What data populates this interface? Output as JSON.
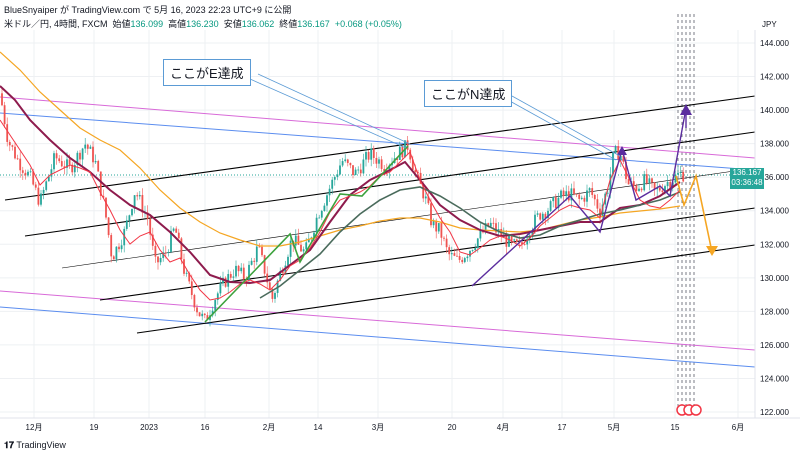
{
  "header": {
    "attribution": "BlueSnyaiper が TradingView.com で 5月 16, 2023 22:23 UTC+9 に公開",
    "symbol": "米ドル／円, 4時間, FXCM",
    "open_label": "始値",
    "open_value": "136.099",
    "high_label": "高値",
    "high_value": "136.230",
    "low_label": "安値",
    "low_value": "136.062",
    "close_label": "終値",
    "close_value": "136.167",
    "change": "+0.068 (+0.05%)"
  },
  "currency_label": "JPY",
  "price_tag": {
    "price": "136.167",
    "countdown": "03:36:48"
  },
  "annotations": {
    "e_label": "ここがE達成",
    "n_label": "ここがN達成"
  },
  "footer": {
    "brand": "TradingView"
  },
  "colors": {
    "candle_up": "#26a69a",
    "candle_down": "#ef5350",
    "ma_short": "#f23645",
    "ma_mid": "#8e1b4d",
    "ma_long": "#f5a623",
    "ma_slow": "#4a6b5c",
    "channel": "#000000",
    "pink_line": "#d86ad8",
    "blue_line": "#5b8def",
    "green_waves": "#3da23d",
    "purple_waves": "#5b2d9e",
    "orange_projection": "#f5a623"
  },
  "chart_data": {
    "type": "candlestick",
    "instrument": "USD/JPY 4H",
    "y_ticks": [
      "144.000",
      "142.000",
      "140.000",
      "138.000",
      "136.000",
      "134.000",
      "132.000",
      "130.000",
      "128.000",
      "126.000",
      "124.000",
      "122.000"
    ],
    "x_ticks": [
      "12月",
      "19",
      "2023",
      "16",
      "2月",
      "14",
      "3月",
      "20",
      "4月",
      "17",
      "5月",
      "15",
      "6月"
    ],
    "ylim": [
      121.5,
      145.5
    ],
    "last_price": 136.167,
    "approx_closes": [
      [
        0,
        141.0
      ],
      [
        8,
        138.2
      ],
      [
        18,
        137.0
      ],
      [
        30,
        136.0
      ],
      [
        40,
        134.5
      ],
      [
        55,
        137.2
      ],
      [
        70,
        136.5
      ],
      [
        85,
        138.0
      ],
      [
        95,
        137.0
      ],
      [
        105,
        134.0
      ],
      [
        112,
        131.2
      ],
      [
        125,
        132.8
      ],
      [
        135,
        135.2
      ],
      [
        148,
        133.5
      ],
      [
        155,
        130.8
      ],
      [
        165,
        131.4
      ],
      [
        175,
        133.0
      ],
      [
        185,
        130.2
      ],
      [
        198,
        128.0
      ],
      [
        205,
        127.4
      ],
      [
        215,
        128.8
      ],
      [
        225,
        129.8
      ],
      [
        235,
        130.5
      ],
      [
        245,
        130.0
      ],
      [
        258,
        131.8
      ],
      [
        265,
        130.4
      ],
      [
        272,
        128.7
      ],
      [
        282,
        130.6
      ],
      [
        292,
        132.3
      ],
      [
        305,
        131.5
      ],
      [
        318,
        133.8
      ],
      [
        330,
        135.4
      ],
      [
        342,
        137.0
      ],
      [
        355,
        136.2
      ],
      [
        370,
        137.4
      ],
      [
        385,
        136.7
      ],
      [
        398,
        137.4
      ],
      [
        408,
        137.9
      ],
      [
        415,
        136.3
      ],
      [
        425,
        134.8
      ],
      [
        432,
        133.2
      ],
      [
        440,
        132.8
      ],
      [
        448,
        131.4
      ],
      [
        458,
        131.0
      ],
      [
        468,
        131.6
      ],
      [
        480,
        132.5
      ],
      [
        490,
        133.2
      ],
      [
        500,
        132.6
      ],
      [
        510,
        132.0
      ],
      [
        520,
        131.8
      ],
      [
        530,
        133.0
      ],
      [
        540,
        133.8
      ],
      [
        550,
        134.2
      ],
      [
        560,
        134.8
      ],
      [
        570,
        135.0
      ],
      [
        580,
        134.6
      ],
      [
        590,
        135.2
      ],
      [
        600,
        134.0
      ],
      [
        608,
        135.4
      ],
      [
        614,
        137.4
      ],
      [
        620,
        137.5
      ],
      [
        628,
        135.6
      ],
      [
        636,
        135.4
      ],
      [
        645,
        135.8
      ],
      [
        655,
        135.1
      ],
      [
        665,
        135.6
      ],
      [
        675,
        136.0
      ],
      [
        680,
        136.2
      ],
      [
        684,
        136.167
      ]
    ]
  }
}
